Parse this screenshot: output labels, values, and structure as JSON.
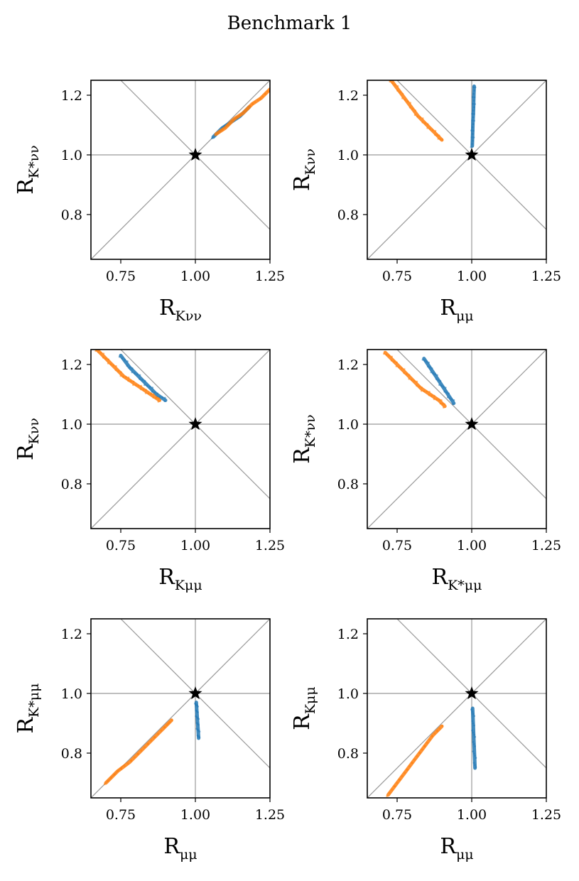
{
  "figure": {
    "title": "Benchmark 1"
  },
  "colors": {
    "series_blue": "#1f77b4",
    "series_orange": "#ff7f0e",
    "reference_lines": "#999999",
    "star": "#000000"
  },
  "chart_data": [
    {
      "type": "scatter",
      "xlabel": "R_{Kνν}",
      "ylabel": "R_{K*νν}",
      "xlabel_main": "R",
      "xlabel_sub": "Kνν",
      "ylabel_main": "R",
      "ylabel_sub": "K*νν",
      "xlim": [
        0.65,
        1.25
      ],
      "ylim": [
        0.65,
        1.25
      ],
      "xticks": [
        "0.75",
        "1.00",
        "1.25"
      ],
      "yticks": [
        "0.8",
        "1.0",
        "1.2"
      ],
      "reference_point": [
        1.0,
        1.0
      ],
      "series": [
        {
          "color": "#1f77b4",
          "points": [
            [
              1.06,
              1.06
            ],
            [
              1.09,
              1.09
            ],
            [
              1.12,
              1.11
            ],
            [
              1.15,
              1.13
            ],
            [
              1.18,
              1.16
            ]
          ]
        },
        {
          "color": "#ff7f0e",
          "points": [
            [
              1.07,
              1.07
            ],
            [
              1.1,
              1.09
            ],
            [
              1.13,
              1.12
            ],
            [
              1.16,
              1.14
            ],
            [
              1.19,
              1.17
            ],
            [
              1.22,
              1.19
            ],
            [
              1.25,
              1.22
            ]
          ]
        }
      ]
    },
    {
      "type": "scatter",
      "xlabel": "R_{μμ}",
      "ylabel": "R_{Kνν}",
      "xlabel_main": "R",
      "xlabel_sub": "μμ",
      "ylabel_main": "R",
      "ylabel_sub": "Kνν",
      "xlim": [
        0.65,
        1.25
      ],
      "ylim": [
        0.65,
        1.25
      ],
      "xticks": [
        "0.75",
        "1.00",
        "1.25"
      ],
      "yticks": [
        "0.8",
        "1.0",
        "1.2"
      ],
      "reference_point": [
        1.0,
        1.0
      ],
      "series": [
        {
          "color": "#1f77b4",
          "points": [
            [
              1.002,
              1.03
            ],
            [
              1.003,
              1.07
            ],
            [
              1.004,
              1.11
            ],
            [
              1.006,
              1.15
            ],
            [
              1.007,
              1.19
            ],
            [
              1.008,
              1.23
            ]
          ]
        },
        {
          "color": "#ff7f0e",
          "points": [
            [
              0.73,
              1.25
            ],
            [
              0.76,
              1.21
            ],
            [
              0.79,
              1.17
            ],
            [
              0.82,
              1.13
            ],
            [
              0.85,
              1.1
            ],
            [
              0.88,
              1.07
            ],
            [
              0.9,
              1.05
            ]
          ]
        }
      ]
    },
    {
      "type": "scatter",
      "xlabel": "R_{Kμμ}",
      "ylabel": "R_{Kνν}",
      "xlabel_main": "R",
      "xlabel_sub": "Kμμ",
      "ylabel_main": "R",
      "ylabel_sub": "Kνν",
      "xlim": [
        0.65,
        1.25
      ],
      "ylim": [
        0.65,
        1.25
      ],
      "xticks": [
        "0.75",
        "1.00",
        "1.25"
      ],
      "yticks": [
        "0.8",
        "1.0",
        "1.2"
      ],
      "reference_point": [
        1.0,
        1.0
      ],
      "series": [
        {
          "color": "#1f77b4",
          "points": [
            [
              0.75,
              1.23
            ],
            [
              0.78,
              1.19
            ],
            [
              0.81,
              1.16
            ],
            [
              0.84,
              1.13
            ],
            [
              0.87,
              1.1
            ],
            [
              0.9,
              1.08
            ]
          ]
        },
        {
          "color": "#ff7f0e",
          "points": [
            [
              0.67,
              1.25
            ],
            [
              0.7,
              1.22
            ],
            [
              0.73,
              1.19
            ],
            [
              0.76,
              1.16
            ],
            [
              0.79,
              1.14
            ],
            [
              0.82,
              1.12
            ],
            [
              0.85,
              1.1
            ],
            [
              0.88,
              1.08
            ]
          ]
        }
      ]
    },
    {
      "type": "scatter",
      "xlabel": "R_{K*μμ}",
      "ylabel": "R_{K*νν}",
      "xlabel_main": "R",
      "xlabel_sub": "K*μμ",
      "ylabel_main": "R",
      "ylabel_sub": "K*νν",
      "xlim": [
        0.65,
        1.25
      ],
      "ylim": [
        0.65,
        1.25
      ],
      "xticks": [
        "0.75",
        "1.00",
        "1.25"
      ],
      "yticks": [
        "0.8",
        "1.0",
        "1.2"
      ],
      "reference_point": [
        1.0,
        1.0
      ],
      "series": [
        {
          "color": "#1f77b4",
          "points": [
            [
              0.84,
              1.22
            ],
            [
              0.86,
              1.19
            ],
            [
              0.88,
              1.16
            ],
            [
              0.9,
              1.13
            ],
            [
              0.92,
              1.1
            ],
            [
              0.94,
              1.07
            ]
          ]
        },
        {
          "color": "#ff7f0e",
          "points": [
            [
              0.71,
              1.24
            ],
            [
              0.74,
              1.21
            ],
            [
              0.77,
              1.18
            ],
            [
              0.8,
              1.15
            ],
            [
              0.83,
              1.12
            ],
            [
              0.86,
              1.1
            ],
            [
              0.89,
              1.08
            ],
            [
              0.91,
              1.06
            ]
          ]
        }
      ]
    },
    {
      "type": "scatter",
      "xlabel": "R_{μμ}",
      "ylabel": "R_{K*μμ}",
      "xlabel_main": "R",
      "xlabel_sub": "μμ",
      "ylabel_main": "R",
      "ylabel_sub": "K*μμ",
      "xlim": [
        0.65,
        1.25
      ],
      "ylim": [
        0.65,
        1.25
      ],
      "xticks": [
        "0.75",
        "1.00",
        "1.25"
      ],
      "yticks": [
        "0.8",
        "1.0",
        "1.2"
      ],
      "reference_point": [
        1.0,
        1.0
      ],
      "series": [
        {
          "color": "#1f77b4",
          "points": [
            [
              1.003,
              0.97
            ],
            [
              1.005,
              0.94
            ],
            [
              1.007,
              0.91
            ],
            [
              1.009,
              0.88
            ],
            [
              1.011,
              0.85
            ]
          ]
        },
        {
          "color": "#ff7f0e",
          "points": [
            [
              0.7,
              0.7
            ],
            [
              0.74,
              0.74
            ],
            [
              0.78,
              0.77
            ],
            [
              0.82,
              0.81
            ],
            [
              0.86,
              0.85
            ],
            [
              0.9,
              0.89
            ],
            [
              0.92,
              0.91
            ]
          ]
        }
      ]
    },
    {
      "type": "scatter",
      "xlabel": "R_{μμ}",
      "ylabel": "R_{Kμμ}",
      "xlabel_main": "R",
      "xlabel_sub": "μμ",
      "ylabel_main": "R",
      "ylabel_sub": "Kμμ",
      "xlim": [
        0.65,
        1.25
      ],
      "ylim": [
        0.65,
        1.25
      ],
      "xticks": [
        "0.75",
        "1.00",
        "1.25"
      ],
      "yticks": [
        "0.8",
        "1.0",
        "1.2"
      ],
      "reference_point": [
        1.0,
        1.0
      ],
      "series": [
        {
          "color": "#1f77b4",
          "points": [
            [
              1.003,
              0.95
            ],
            [
              1.005,
              0.9
            ],
            [
              1.007,
              0.85
            ],
            [
              1.009,
              0.8
            ],
            [
              1.011,
              0.75
            ]
          ]
        },
        {
          "color": "#ff7f0e",
          "points": [
            [
              0.72,
              0.66
            ],
            [
              0.75,
              0.7
            ],
            [
              0.78,
              0.74
            ],
            [
              0.81,
              0.78
            ],
            [
              0.84,
              0.82
            ],
            [
              0.87,
              0.86
            ],
            [
              0.9,
              0.89
            ]
          ]
        }
      ]
    }
  ]
}
